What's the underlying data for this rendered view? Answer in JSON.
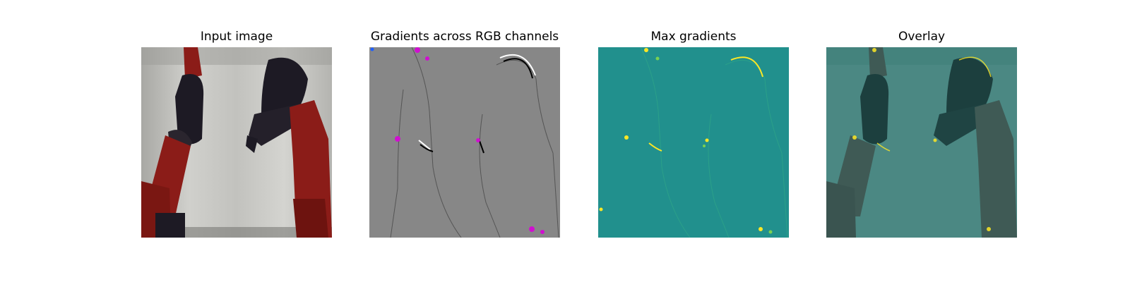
{
  "figure": {
    "panels": [
      {
        "title": "Input image",
        "image": "robot-arms-photo"
      },
      {
        "title": "Gradients across RGB channels",
        "image": "rgb-gradient-map"
      },
      {
        "title": "Max gradients",
        "image": "max-gradient-heatmap"
      },
      {
        "title": "Overlay",
        "image": "gradient-overlay-photo"
      }
    ],
    "colors": {
      "background": "#ffffff",
      "curtain": "#c6c6c2",
      "robot_red": "#8b1c18",
      "robot_black": "#1d1a24",
      "gradient_gray": "#878787",
      "gradient_magenta": "#d010d0",
      "heatmap_teal": "#21908d",
      "heatmap_yellow": "#fde725",
      "overlay_teal": "#4b8883"
    }
  }
}
